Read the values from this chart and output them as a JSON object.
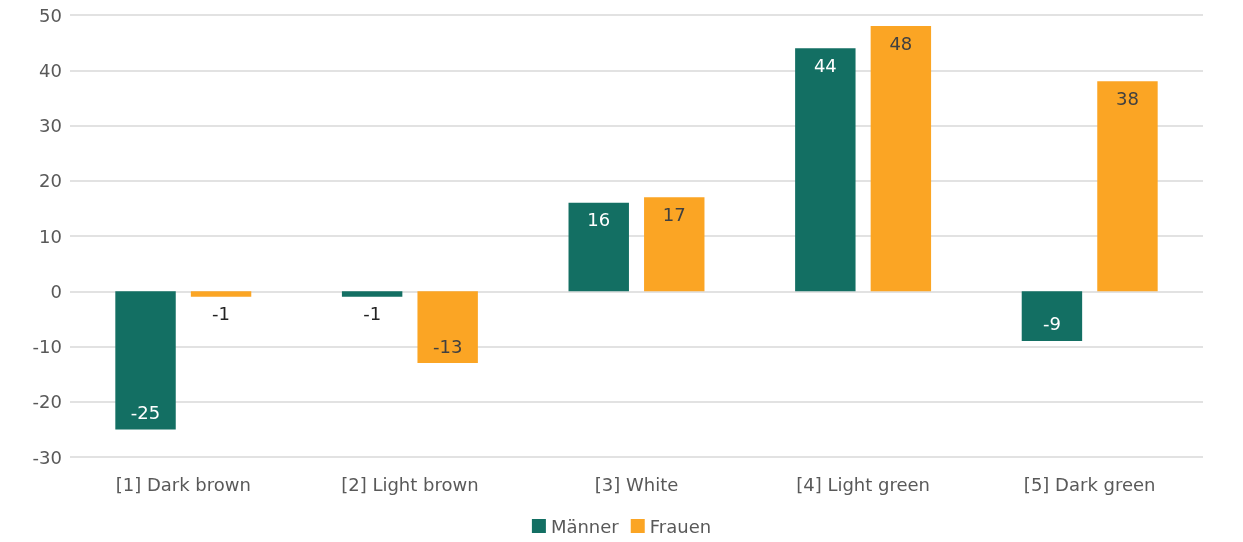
{
  "chart_data": {
    "type": "bar",
    "categories": [
      "[1] Dark brown",
      "[2] Light brown",
      "[3] White",
      "[4] Light green",
      "[5] Dark green"
    ],
    "series": [
      {
        "name": "Männer",
        "color": "#136f63",
        "values": [
          -25,
          -1,
          16,
          44,
          -9
        ]
      },
      {
        "name": "Frauen",
        "color": "#fba524",
        "values": [
          -1,
          -13,
          17,
          48,
          38
        ]
      }
    ],
    "ylim": [
      -30,
      50
    ],
    "yticks": [
      -30,
      -20,
      -10,
      0,
      10,
      20,
      30,
      40,
      50
    ],
    "grid": "y",
    "legend": "bottom",
    "data_labels": true
  }
}
